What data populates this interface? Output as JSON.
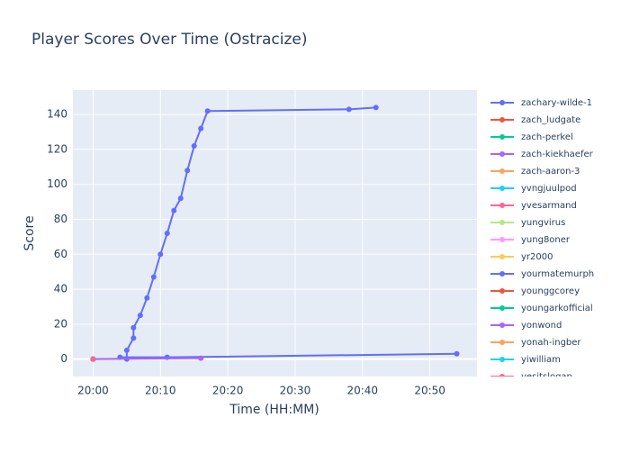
{
  "chart_data": {
    "type": "line",
    "title": "Player Scores Over Time (Ostracize)",
    "x_label": "Time (HH:MM)",
    "y_label": "Score",
    "xlim": [
      "19:57",
      "20:57"
    ],
    "xticks": [
      "20:00",
      "20:10",
      "20:20",
      "20:30",
      "20:40",
      "20:50"
    ],
    "ylim": [
      -10,
      154
    ],
    "yticks": [
      0,
      20,
      40,
      60,
      80,
      100,
      120,
      140
    ],
    "grid": true,
    "series": [
      {
        "name": "zachary-wilde-1",
        "color": "#636efa",
        "x": [
          "20:05",
          "20:05",
          "20:06",
          "20:06",
          "20:07",
          "20:08",
          "20:09",
          "20:10",
          "20:11",
          "20:12",
          "20:13",
          "20:14",
          "20:15",
          "20:16",
          "20:17",
          "20:38",
          "20:42"
        ],
        "values": [
          0,
          5,
          12,
          18,
          25,
          35,
          47,
          60,
          72,
          85,
          92,
          108,
          122,
          132,
          142,
          143,
          144
        ]
      },
      {
        "name": "zach_ludgate",
        "color": "#EF553B",
        "x": [
          "20:00"
        ],
        "values": [
          0
        ]
      },
      {
        "name": "zach-perkel",
        "color": "#00cc96",
        "x": [
          "20:00"
        ],
        "values": [
          0
        ]
      },
      {
        "name": "zach-kiekhaefer",
        "color": "#ab63fa",
        "x": [
          "20:00"
        ],
        "values": [
          0
        ]
      },
      {
        "name": "zach-aaron-3",
        "color": "#FFA15A",
        "x": [
          "20:00"
        ],
        "values": [
          0
        ]
      },
      {
        "name": "yvngjuulpod",
        "color": "#19d3f3",
        "x": [
          "20:00"
        ],
        "values": [
          0
        ]
      },
      {
        "name": "yvesarmand",
        "color": "#FF6692",
        "x": [
          "20:00"
        ],
        "values": [
          0
        ]
      },
      {
        "name": "yungvirus",
        "color": "#B6E880",
        "x": [
          "20:00"
        ],
        "values": [
          0
        ]
      },
      {
        "name": "yung8oner",
        "color": "#FF97FF",
        "x": [
          "20:00"
        ],
        "values": [
          0
        ]
      },
      {
        "name": "yr2000",
        "color": "#FECB52",
        "x": [
          "20:00"
        ],
        "values": [
          0
        ]
      },
      {
        "name": "yourmatemurph",
        "color": "#636efa",
        "x": [
          "20:04",
          "20:11",
          "20:54"
        ],
        "values": [
          1,
          1,
          3
        ]
      },
      {
        "name": "younggcorey",
        "color": "#EF553B",
        "x": [
          "20:00"
        ],
        "values": [
          0
        ]
      },
      {
        "name": "youngarkofficial",
        "color": "#00cc96",
        "x": [
          "20:00"
        ],
        "values": [
          0
        ]
      },
      {
        "name": "yonwond",
        "color": "#ab63fa",
        "x": [
          "20:00",
          "20:16"
        ],
        "values": [
          0,
          0.5
        ]
      },
      {
        "name": "yonah-ingber",
        "color": "#FFA15A",
        "x": [
          "20:00"
        ],
        "values": [
          0
        ]
      },
      {
        "name": "yiwilliam",
        "color": "#19d3f3",
        "x": [
          "20:00"
        ],
        "values": [
          0
        ]
      },
      {
        "name": "yesitslogan",
        "color": "#FF6692",
        "x": [
          "20:00"
        ],
        "values": [
          0
        ]
      }
    ]
  }
}
